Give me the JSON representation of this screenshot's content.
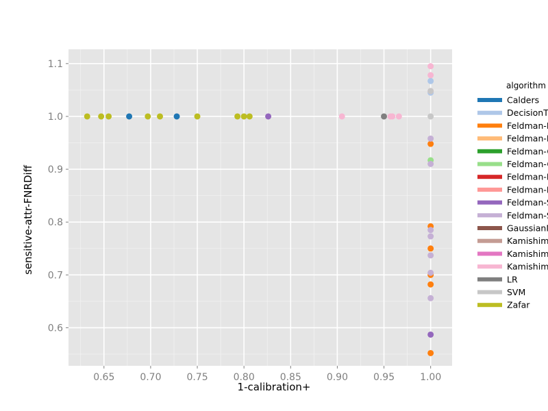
{
  "chart_data": {
    "type": "scatter",
    "title": "",
    "xlabel": "1-calibration+",
    "ylabel": "sensitive-attr-FNRDiff",
    "xlim": [
      0.612,
      1.023
    ],
    "ylim": [
      0.528,
      1.127
    ],
    "x_ticks": [
      0.65,
      0.7,
      0.75,
      0.8,
      0.85,
      0.9,
      0.95,
      1.0
    ],
    "x_tick_labels": [
      "0.65",
      "0.70",
      "0.75",
      "0.80",
      "0.85",
      "0.90",
      "0.95",
      "1.00"
    ],
    "y_ticks": [
      0.6,
      0.7,
      0.8,
      0.9,
      1.0,
      1.1
    ],
    "y_tick_labels": [
      "0.6",
      "0.7",
      "0.8",
      "0.9",
      "1.0",
      "1.1"
    ],
    "grid": true,
    "background": "#e5e5e5",
    "grid_color": "#ffffff",
    "legend": {
      "title": "algorithm",
      "placement": "right",
      "entries": [
        {
          "label": "Calders",
          "color": "#1f77b4"
        },
        {
          "label": "DecisionTree",
          "color": "#aec7e8"
        },
        {
          "label": "Feldman-DecisionTree",
          "color": "#ff7f0e"
        },
        {
          "label": "Feldman-DecisionTree-B",
          "color": "#ffbb78"
        },
        {
          "label": "Feldman-GaussianNB",
          "color": "#2ca02c"
        },
        {
          "label": "Feldman-GaussianNB-B",
          "color": "#98df8a"
        },
        {
          "label": "Feldman-LR",
          "color": "#d62728"
        },
        {
          "label": "Feldman-LR-B",
          "color": "#ff9896"
        },
        {
          "label": "Feldman-SVM",
          "color": "#9467bd"
        },
        {
          "label": "Feldman-SVM-B",
          "color": "#c5b0d5"
        },
        {
          "label": "GaussianNB",
          "color": "#8c564b"
        },
        {
          "label": "Kamishima",
          "color": "#c49c94"
        },
        {
          "label": "Kamishima-accuracy",
          "color": "#e377c2"
        },
        {
          "label": "Kamishima-B",
          "color": "#f7b6d2"
        },
        {
          "label": "LR",
          "color": "#7f7f7f"
        },
        {
          "label": "SVM",
          "color": "#c7c7c7"
        },
        {
          "label": "Zafar",
          "color": "#bcbd22"
        }
      ]
    },
    "series": [
      {
        "name": "Calders",
        "points": [
          [
            0.677,
            1.0
          ],
          [
            0.728,
            1.0
          ]
        ]
      },
      {
        "name": "DecisionTree",
        "points": [
          [
            1.0,
            1.067
          ],
          [
            1.0,
            1.045
          ]
        ]
      },
      {
        "name": "Feldman-DecisionTree",
        "points": [
          [
            1.0,
            0.552
          ],
          [
            1.0,
            0.682
          ],
          [
            1.0,
            0.7
          ],
          [
            1.0,
            0.75
          ],
          [
            1.0,
            0.792
          ],
          [
            1.0,
            0.948
          ]
        ]
      },
      {
        "name": "Feldman-GaussianNB-B",
        "points": [
          [
            1.0,
            0.917
          ]
        ]
      },
      {
        "name": "Feldman-SVM",
        "points": [
          [
            0.826,
            1.0
          ],
          [
            1.0,
            0.587
          ]
        ]
      },
      {
        "name": "Feldman-SVM-B",
        "points": [
          [
            1.0,
            0.656
          ],
          [
            1.0,
            0.704
          ],
          [
            1.0,
            0.737
          ],
          [
            1.0,
            0.773
          ],
          [
            1.0,
            0.785
          ],
          [
            1.0,
            0.91
          ],
          [
            1.0,
            0.958
          ]
        ]
      },
      {
        "name": "Kamishima-B",
        "points": [
          [
            0.905,
            1.0
          ],
          [
            0.957,
            1.0
          ],
          [
            0.959,
            1.0
          ],
          [
            0.966,
            1.0
          ],
          [
            1.0,
            1.095
          ],
          [
            1.0,
            1.078
          ],
          [
            1.0,
            1.048
          ]
        ]
      },
      {
        "name": "LR",
        "points": [
          [
            0.95,
            1.0
          ]
        ]
      },
      {
        "name": "SVM",
        "points": [
          [
            1.0,
            1.0
          ],
          [
            1.0,
            1.048
          ]
        ]
      },
      {
        "name": "Zafar",
        "points": [
          [
            0.632,
            1.0
          ],
          [
            0.647,
            1.0
          ],
          [
            0.655,
            1.0
          ],
          [
            0.697,
            1.0
          ],
          [
            0.71,
            1.0
          ],
          [
            0.75,
            1.0
          ],
          [
            0.793,
            1.0
          ],
          [
            0.8,
            1.0
          ],
          [
            0.806,
            1.0
          ]
        ]
      }
    ]
  }
}
